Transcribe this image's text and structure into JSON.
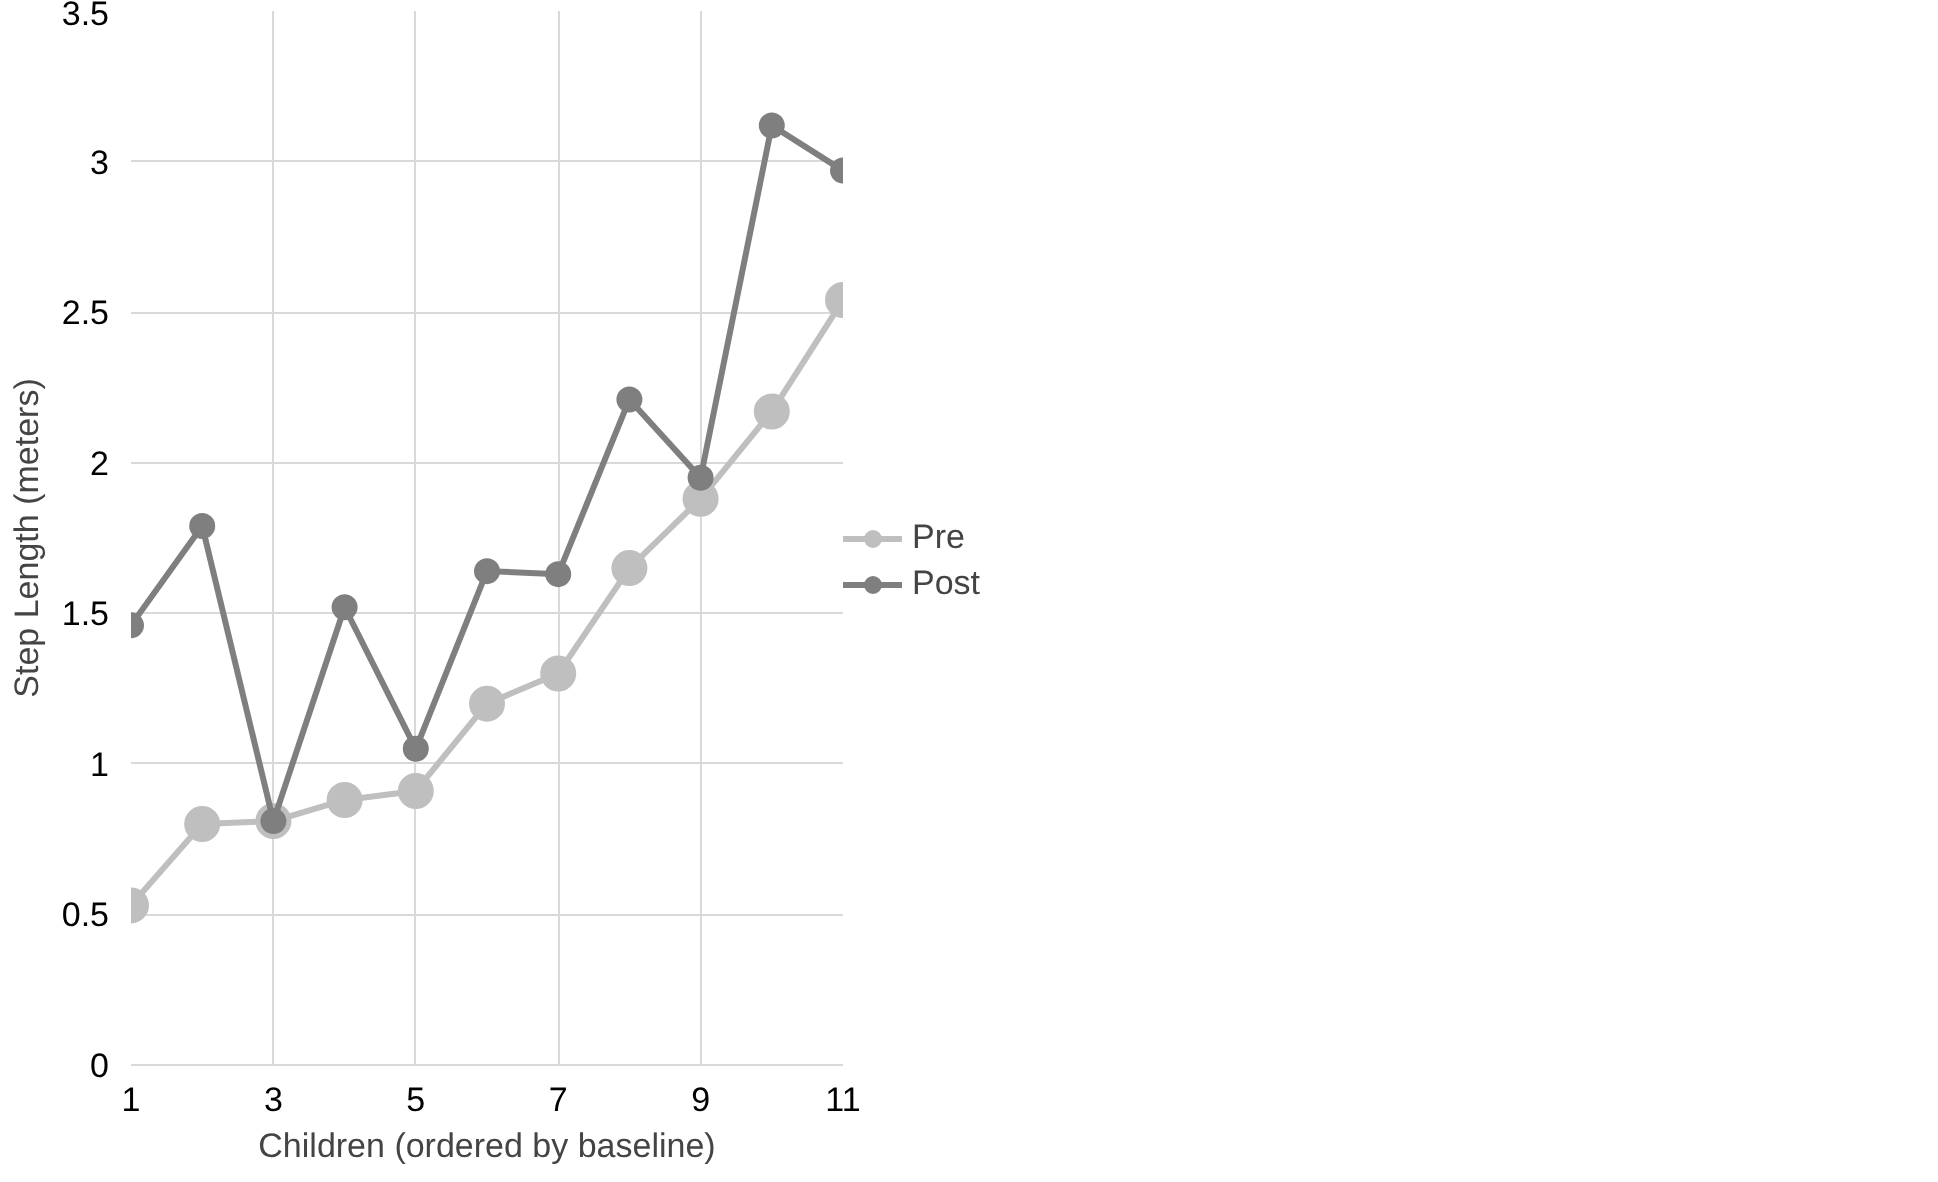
{
  "chart_data": {
    "type": "line",
    "xlabel": "Children (ordered by baseline)",
    "ylabel": "Step Length (meters)",
    "x": [
      1,
      2,
      3,
      4,
      5,
      6,
      7,
      8,
      9,
      10,
      11
    ],
    "series": [
      {
        "name": "Pre",
        "color": "#bfbfbf",
        "values": [
          0.53,
          0.8,
          0.81,
          0.88,
          0.91,
          1.2,
          1.3,
          1.65,
          1.88,
          2.17,
          2.54
        ]
      },
      {
        "name": "Post",
        "color": "#7f7f7f",
        "values": [
          1.46,
          1.79,
          0.81,
          1.52,
          1.05,
          1.64,
          1.63,
          2.21,
          1.95,
          3.12,
          2.97
        ]
      }
    ],
    "xlim": [
      1,
      11
    ],
    "xticks": [
      1,
      3,
      5,
      7,
      9,
      11
    ],
    "ylim": [
      0,
      3.5
    ],
    "yticks": [
      0,
      0.5,
      1,
      1.5,
      2,
      2.5,
      3,
      3.5
    ],
    "grid": true,
    "legend": "right",
    "marker": "circle",
    "line_style": "solid"
  }
}
